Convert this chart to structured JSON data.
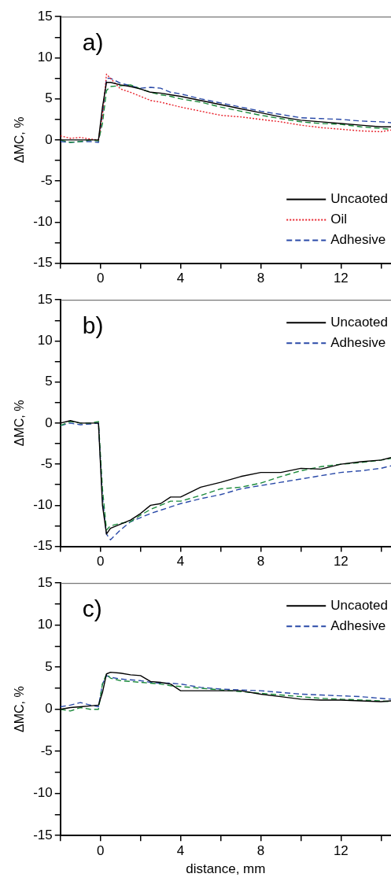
{
  "chart_data": [
    {
      "type": "line",
      "ylabel": "ΔMC, %",
      "annotations": [
        "a)"
      ],
      "legend": "bottom right",
      "marker": "none",
      "x": [
        -2,
        -1.5,
        -1,
        -0.5,
        -0.1,
        0.1,
        0.3,
        0.5,
        1,
        1.5,
        2,
        2.5,
        3,
        3.5,
        4,
        5,
        6,
        7,
        8,
        9,
        10,
        11,
        12,
        13,
        14,
        14.5
      ],
      "series": [
        {
          "name": "Uncaoted",
          "color": "#000000",
          "line_style": "solid",
          "values": [
            0,
            0,
            0,
            0,
            0,
            4,
            7,
            7,
            6.7,
            6.5,
            6.2,
            5.8,
            5.7,
            5.5,
            5.3,
            4.8,
            4.3,
            3.8,
            3.3,
            2.8,
            2.4,
            2.2,
            2,
            1.8,
            1.6,
            1.6
          ]
        },
        {
          "name": "Oil",
          "color": "#e8212b",
          "line_style": "dotted",
          "values": [
            0.5,
            0.2,
            0.3,
            0.1,
            0,
            3,
            8,
            7.5,
            6.2,
            5.8,
            5.3,
            4.8,
            4.6,
            4.3,
            4,
            3.5,
            3,
            2.8,
            2.5,
            2.2,
            1.8,
            1.5,
            1.3,
            1.1,
            1,
            1.2
          ]
        },
        {
          "color": "#1a8a3a",
          "line_style": "dashed",
          "values": [
            0,
            -0.3,
            -0.2,
            0,
            -0.1,
            2,
            6,
            6.5,
            6.6,
            6.7,
            6.2,
            5.8,
            5.5,
            5.3,
            5,
            4.6,
            4,
            3.5,
            3,
            2.6,
            2.2,
            2,
            1.9,
            1.6,
            1.4,
            1.3
          ]
        },
        {
          "name": "Adhesive",
          "color": "#2a4aa8",
          "line_style": "dashed",
          "values": [
            -0.2,
            -0.3,
            -0.2,
            -0.2,
            -0.3,
            3,
            7.5,
            7.5,
            6.9,
            6.6,
            6.3,
            6.4,
            6.3,
            5.8,
            5.6,
            5,
            4.5,
            4,
            3.5,
            3.1,
            2.7,
            2.6,
            2.5,
            2.3,
            2.2,
            2.1
          ]
        }
      ],
      "xlim": [
        -2,
        14.5
      ],
      "ylim": [
        -15,
        15
      ],
      "xticks": [
        {
          "value": -2,
          "label": null
        },
        0,
        {
          "value": 2,
          "label": null
        },
        4,
        {
          "value": 6,
          "label": null
        },
        8,
        {
          "value": 10,
          "label": null
        },
        12,
        {
          "value": 14,
          "label": null
        }
      ],
      "yticks": [
        -15,
        {
          "value": -12.5,
          "label": null
        },
        -10,
        {
          "value": -7.5,
          "label": null
        },
        -5,
        {
          "value": -2.5,
          "label": null
        },
        0,
        {
          "value": 2.5,
          "label": null
        },
        5,
        {
          "value": 7.5,
          "label": null
        },
        10,
        {
          "value": 12.5,
          "label": null
        },
        15
      ]
    },
    {
      "type": "line",
      "ylabel": "ΔMC, %",
      "annotations": [
        "b)"
      ],
      "legend": "top right",
      "marker": "none",
      "x": [
        -2,
        -1.5,
        -1,
        -0.5,
        -0.1,
        0.1,
        0.3,
        0.5,
        1,
        1.5,
        2,
        2.5,
        3,
        3.5,
        4,
        5,
        6,
        7,
        8,
        9,
        10,
        11,
        12,
        13,
        14,
        14.5
      ],
      "series": [
        {
          "name": "Uncaoted",
          "color": "#000000",
          "line_style": "solid",
          "values": [
            0,
            0.3,
            0,
            0,
            0,
            -10,
            -13.5,
            -12.8,
            -12.3,
            -11.8,
            -11,
            -10,
            -9.8,
            -9,
            -9,
            -7.8,
            -7.2,
            -6.5,
            -6,
            -6,
            -5.5,
            -5.6,
            -5,
            -4.7,
            -4.5,
            -4.2
          ]
        },
        {
          "color": "#1a8a3a",
          "line_style": "dashed",
          "values": [
            -0.3,
            0.2,
            0,
            0,
            0.2,
            -8,
            -13,
            -12.5,
            -12.2,
            -12,
            -11.2,
            -10.5,
            -10,
            -9.5,
            -9.5,
            -8.8,
            -8,
            -7.8,
            -7.3,
            -6.5,
            -5.8,
            -5.3,
            -5,
            -4.8,
            -4.5,
            -4.3
          ]
        },
        {
          "name": "Adhesive",
          "color": "#2a4aa8",
          "line_style": "dashed",
          "values": [
            -0.3,
            0,
            -0.2,
            -0.1,
            0,
            -9,
            -13.5,
            -14.2,
            -13,
            -12,
            -11.5,
            -11,
            -10.6,
            -10.2,
            -9.8,
            -9.2,
            -8.7,
            -8,
            -7.6,
            -7.2,
            -6.8,
            -6.4,
            -6,
            -5.8,
            -5.5,
            -5.2
          ]
        }
      ],
      "xlim": [
        -2,
        14.5
      ],
      "ylim": [
        -15,
        15
      ],
      "xticks": [
        {
          "value": -2,
          "label": null
        },
        0,
        {
          "value": 2,
          "label": null
        },
        4,
        {
          "value": 6,
          "label": null
        },
        8,
        {
          "value": 10,
          "label": null
        },
        12,
        {
          "value": 14,
          "label": null
        }
      ],
      "yticks": [
        -15,
        {
          "value": -12.5,
          "label": null
        },
        -10,
        {
          "value": -7.5,
          "label": null
        },
        -5,
        {
          "value": -2.5,
          "label": null
        },
        0,
        {
          "value": 2.5,
          "label": null
        },
        5,
        {
          "value": 7.5,
          "label": null
        },
        10,
        {
          "value": 12.5,
          "label": null
        },
        15
      ]
    },
    {
      "type": "line",
      "ylabel": "ΔMC, %",
      "xlabel": "distance, mm",
      "annotations": [
        "c)"
      ],
      "legend": "top right",
      "marker": "none",
      "x": [
        -2,
        -1.5,
        -1,
        -0.5,
        -0.1,
        0.1,
        0.3,
        0.5,
        1,
        1.5,
        2,
        2.5,
        3,
        3.5,
        4,
        5,
        6,
        7,
        8,
        9,
        10,
        11,
        12,
        13,
        14,
        14.5
      ],
      "series": [
        {
          "name": "Uncaoted",
          "color": "#000000",
          "line_style": "solid",
          "values": [
            0,
            0.2,
            0.3,
            0.4,
            0.5,
            2,
            4.2,
            4.4,
            4.3,
            4.1,
            4,
            3.3,
            3.2,
            3,
            2.2,
            2.2,
            2.2,
            2.2,
            1.8,
            1.5,
            1.2,
            1.1,
            1.1,
            1,
            0.9,
            1
          ]
        },
        {
          "color": "#1a8a3a",
          "line_style": "dashed",
          "values": [
            0,
            -0.2,
            0.2,
            0,
            0,
            3,
            4.2,
            3.7,
            3.4,
            3.3,
            3.2,
            3.1,
            3,
            2.8,
            2.7,
            2.5,
            2.3,
            2.1,
            1.9,
            1.7,
            1.5,
            1.3,
            1.2,
            1.1,
            1,
            0.9
          ]
        },
        {
          "name": "Adhesive",
          "color": "#2a4aa8",
          "line_style": "dashed",
          "values": [
            0.3,
            0.5,
            0.8,
            0.5,
            0.3,
            3,
            4,
            3.8,
            3.6,
            3.5,
            3.4,
            3.2,
            3.1,
            3.1,
            3,
            2.6,
            2.4,
            2.3,
            2.2,
            2,
            1.8,
            1.7,
            1.6,
            1.5,
            1.3,
            1.2
          ]
        }
      ],
      "xlim": [
        -2,
        14.5
      ],
      "ylim": [
        -15,
        15
      ],
      "xticks": [
        {
          "value": -2,
          "label": null
        },
        0,
        {
          "value": 2,
          "label": null
        },
        4,
        {
          "value": 6,
          "label": null
        },
        8,
        {
          "value": 10,
          "label": null
        },
        12,
        {
          "value": 14,
          "label": null
        }
      ],
      "yticks": [
        -15,
        {
          "value": -12.5,
          "label": null
        },
        -10,
        {
          "value": -7.5,
          "label": null
        },
        -5,
        {
          "value": -2.5,
          "label": null
        },
        0,
        {
          "value": 2.5,
          "label": null
        },
        5,
        {
          "value": 7.5,
          "label": null
        },
        10,
        {
          "value": 12.5,
          "label": null
        },
        15
      ]
    }
  ]
}
